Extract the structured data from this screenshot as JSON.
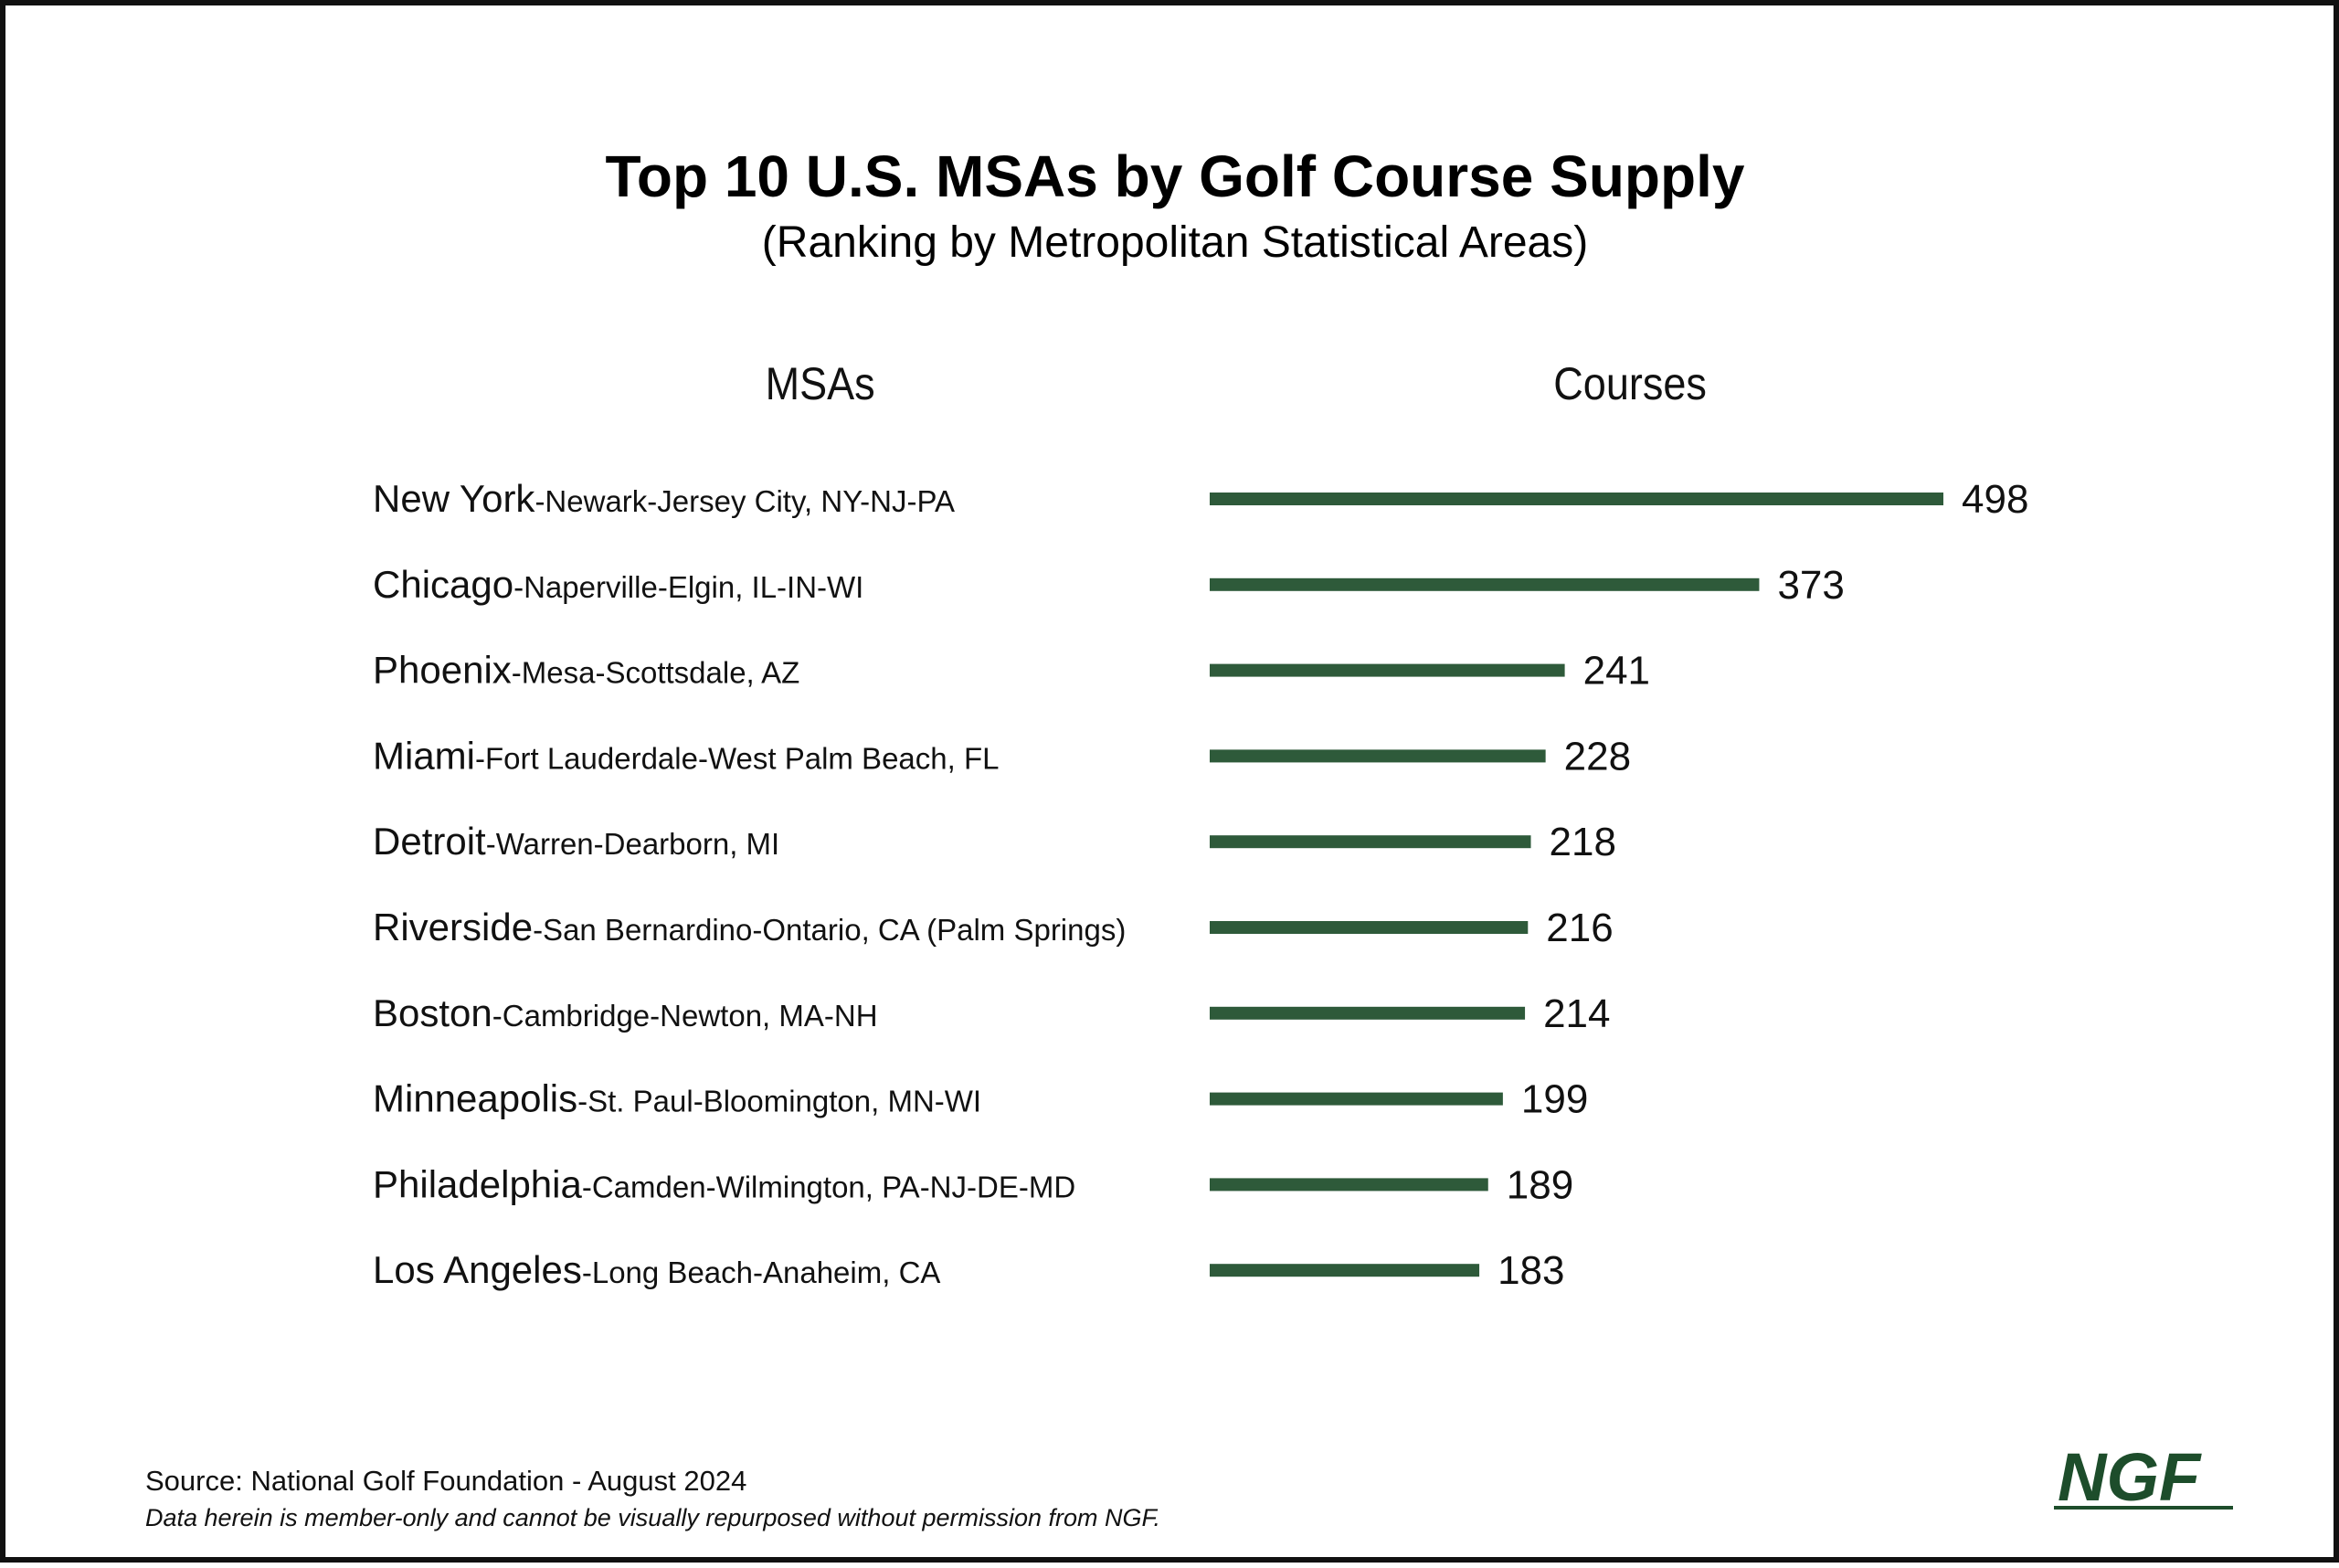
{
  "title": "Top 10 U.S. MSAs by Golf Course Supply",
  "subtitle": "(Ranking by Metropolitan Statistical Areas)",
  "column_headers": {
    "msas": "MSAs",
    "courses": "Courses"
  },
  "footer": {
    "source": "Source: National Golf Foundation - August 2024",
    "note": "Data herein is member-only and cannot be visually repurposed without permission from NGF."
  },
  "logo": {
    "text": "NGF",
    "color": "#1d4d2b"
  },
  "chart_data": {
    "type": "bar",
    "orientation": "horizontal",
    "bar_color": "#2e5a3a",
    "categories": [
      "New York-Newark-Jersey City, NY-NJ-PA",
      "Chicago-Naperville-Elgin, IL-IN-WI",
      "Phoenix-Mesa-Scottsdale, AZ",
      "Miami-Fort Lauderdale-West Palm Beach, FL",
      "Detroit-Warren-Dearborn, MI",
      "Riverside-San Bernardino-Ontario, CA (Palm Springs)",
      "Boston-Cambridge-Newton, MA-NH",
      "Minneapolis-St. Paul-Bloomington, MN-WI",
      "Philadelphia-Camden-Wilmington, PA-NJ-DE-MD",
      "Los Angeles-Long Beach-Anaheim, CA"
    ],
    "category_parts": [
      {
        "city": "New York",
        "rest": "-Newark-Jersey City, NY-NJ-PA"
      },
      {
        "city": "Chicago",
        "rest": "-Naperville-Elgin, IL-IN-WI"
      },
      {
        "city": "Phoenix",
        "rest": "-Mesa-Scottsdale, AZ"
      },
      {
        "city": "Miami",
        "rest": "-Fort Lauderdale-West Palm Beach, FL"
      },
      {
        "city": "Detroit",
        "rest": "-Warren-Dearborn, MI"
      },
      {
        "city": "Riverside",
        "rest": "-San Bernardino-Ontario, CA (Palm Springs)"
      },
      {
        "city": "Boston",
        "rest": "-Cambridge-Newton, MA-NH"
      },
      {
        "city": "Minneapolis",
        "rest": "-St. Paul-Bloomington, MN-WI"
      },
      {
        "city": "Philadelphia",
        "rest": "-Camden-Wilmington, PA-NJ-DE-MD"
      },
      {
        "city": "Los Angeles",
        "rest": "-Long Beach-Anaheim, CA"
      }
    ],
    "values": [
      498,
      373,
      241,
      228,
      218,
      216,
      214,
      199,
      189,
      183
    ],
    "xlabel": "Courses",
    "ylabel": "MSAs",
    "xlim": [
      0,
      498
    ],
    "grid": false,
    "legend": "none",
    "data_labels": true
  }
}
